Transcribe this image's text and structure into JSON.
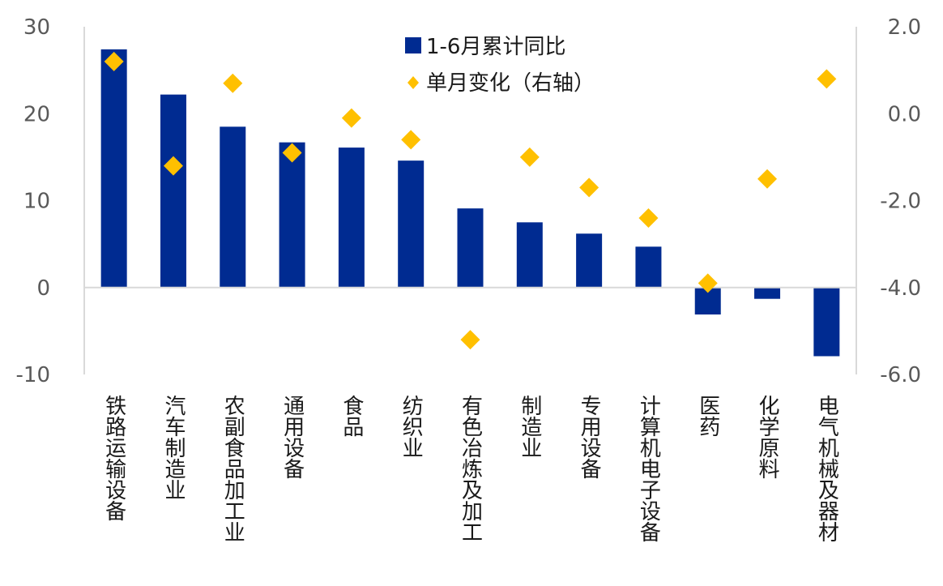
{
  "chart_data": {
    "type": "bar",
    "categories": [
      "铁路运输设备",
      "汽车制造业",
      "农副食品加工业",
      "通用设备",
      "食品",
      "纺织业",
      "有色冶炼及加工",
      "制造业",
      "专用设备",
      "计算机电子设备",
      "医药",
      "化学原料",
      "电气机械及器材"
    ],
    "series": [
      {
        "name": "1-6月累计同比",
        "kind": "bar",
        "axis": "left",
        "color": "#002B91",
        "values": [
          27.4,
          22.2,
          18.5,
          16.7,
          16.1,
          14.6,
          9.1,
          7.5,
          6.2,
          4.7,
          -3.1,
          -1.3,
          -7.9
        ]
      },
      {
        "name": "单月变化（右轴）",
        "kind": "scatter",
        "marker": "diamond",
        "axis": "right",
        "color": "#FFC000",
        "values": [
          1.2,
          -1.2,
          0.7,
          -0.9,
          -0.1,
          -0.6,
          -5.2,
          -1.0,
          -1.7,
          -2.4,
          -3.9,
          -1.5,
          0.8
        ]
      }
    ],
    "left_axis": {
      "ylim": [
        -10,
        30
      ],
      "ticks": [
        "30",
        "20",
        "10",
        "0",
        "-10"
      ],
      "tick_values": [
        30,
        20,
        10,
        0,
        -10
      ]
    },
    "right_axis": {
      "ylim": [
        -6,
        2
      ],
      "ticks": [
        "2.0",
        "0.0",
        "-2.0",
        "-4.0",
        "-6.0"
      ],
      "tick_values": [
        2,
        0,
        -2,
        -4,
        -6
      ]
    },
    "legend": {
      "placement": "top-center",
      "entries": [
        "1-6月累计同比",
        "单月变化（右轴）"
      ]
    },
    "grid": false,
    "title": ""
  }
}
